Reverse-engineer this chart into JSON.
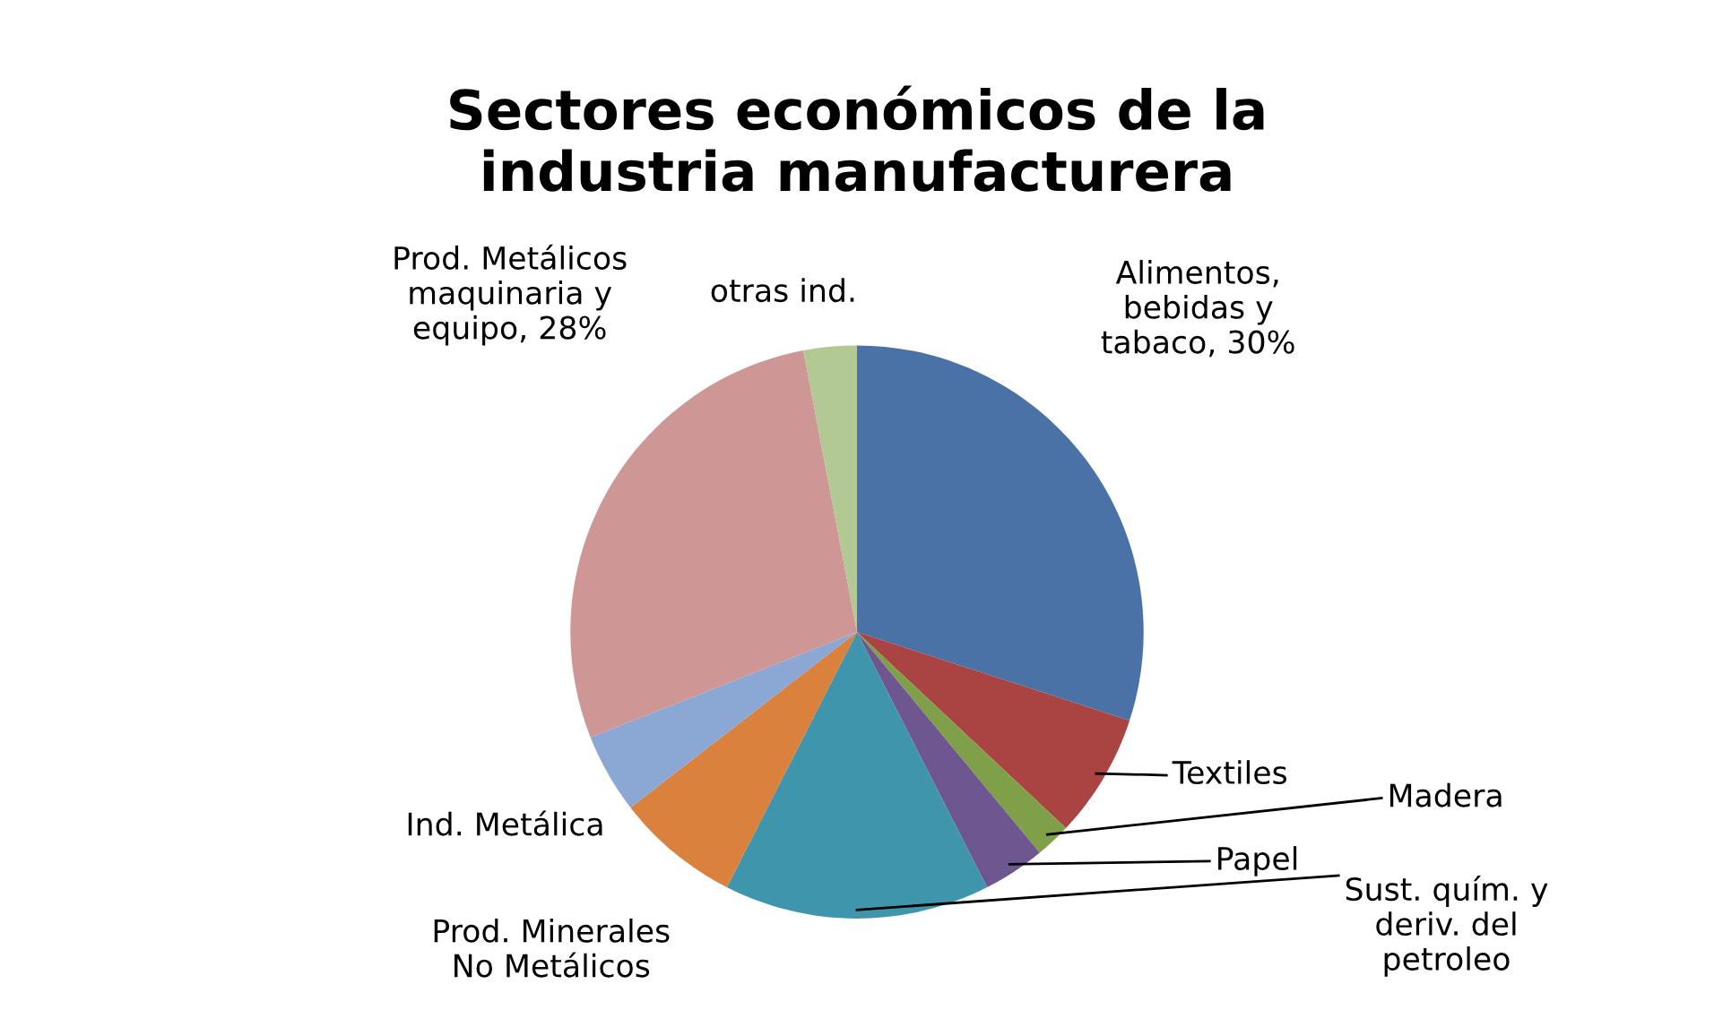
{
  "chart_data": {
    "type": "pie",
    "title": "Sectores económicos de la industria manufacturera",
    "categories": [
      "Alimentos, bebidas y tabaco",
      "Textiles",
      "Madera",
      "Papel",
      "Sust. quím. y deriv. del petroleo",
      "Prod. Minerales No Metálicos",
      "Ind. Metálica",
      "Prod. Metálicos maquinaria y equipo",
      "otras ind."
    ],
    "values": [
      30,
      7,
      2,
      3.5,
      15,
      7,
      4.5,
      28,
      3
    ],
    "value_labels": [
      "30%",
      null,
      null,
      null,
      null,
      null,
      null,
      "28%",
      null
    ],
    "colors": [
      "#4a72a6",
      "#a94442",
      "#7f9f48",
      "#6e5690",
      "#3f95ab",
      "#d9813d",
      "#8ba8d4",
      "#cf9696",
      "#b3c994"
    ]
  }
}
